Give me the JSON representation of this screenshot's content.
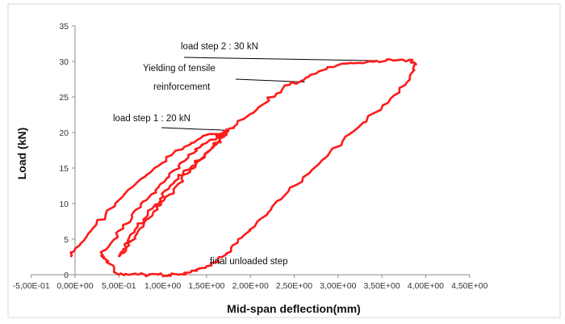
{
  "chart_data": {
    "type": "line",
    "title": "",
    "xlabel": "Mid-span deflection(mm)",
    "ylabel": "Load  (kN)",
    "xlim": [
      -0.5,
      4.5
    ],
    "ylim": [
      0,
      35
    ],
    "x_ticks": [
      -0.5,
      0,
      0.5,
      1,
      1.5,
      2,
      2.5,
      3,
      3.5,
      4,
      4.5
    ],
    "x_tick_labels": [
      "-5,00E-01",
      "0,00E+00",
      "5,00E-01",
      "1,00E+00",
      "1,50E+00",
      "2,00E+00",
      "2,50E+00",
      "3,00E+00",
      "3,50E+00",
      "4,00E+00",
      "4,50E+00"
    ],
    "y_ticks": [
      0,
      5,
      10,
      15,
      20,
      25,
      30,
      35
    ],
    "y_tick_labels": [
      "0",
      "5",
      "10",
      "15",
      "20",
      "25",
      "30",
      "35"
    ],
    "grid": false,
    "legend": "none",
    "series_color": "#ff1a1a",
    "series": [
      {
        "x": [
          -0.05,
          0.0,
          0.1,
          0.2,
          0.35,
          0.5,
          0.65,
          0.8,
          0.95,
          1.1,
          1.25,
          1.4,
          1.55,
          1.7,
          1.75,
          1.85,
          2.0,
          2.15,
          2.3,
          2.45,
          2.6,
          2.75,
          2.95,
          3.15,
          3.35,
          3.55,
          3.7,
          3.85,
          3.87,
          3.82,
          3.74,
          3.6,
          3.42,
          3.23,
          3.05,
          2.88,
          2.7,
          2.52,
          2.35,
          2.2,
          2.05,
          1.9,
          1.78,
          1.68,
          1.62,
          1.5,
          1.38,
          1.3,
          1.18,
          1.07,
          0.95,
          0.85,
          0.72,
          0.6,
          0.5,
          0.4,
          0.33,
          0.3,
          0.35,
          0.45,
          0.55,
          0.65,
          0.75,
          0.85,
          0.95,
          1.05,
          1.15,
          1.25,
          1.35,
          1.45,
          1.55,
          1.65,
          1.75,
          1.7,
          1.62,
          1.52,
          1.42,
          1.3,
          1.18,
          1.07,
          0.97,
          0.88,
          0.78,
          0.68,
          0.6,
          0.55,
          0.5,
          0.58,
          0.68,
          0.78,
          0.88,
          0.98,
          1.08,
          1.18,
          1.28,
          1.38,
          1.48,
          1.58,
          1.68,
          1.75
        ],
        "y": [
          2.5,
          3.5,
          4.8,
          6.5,
          8.5,
          10.5,
          12.3,
          13.8,
          15.3,
          16.8,
          18.0,
          19.0,
          19.8,
          20.2,
          20.3,
          21.2,
          22.6,
          24.0,
          25.5,
          26.7,
          27.3,
          28.3,
          29.2,
          29.8,
          30.0,
          30.1,
          30.2,
          30.2,
          29.5,
          28.0,
          26.5,
          24.8,
          22.8,
          20.7,
          18.7,
          16.7,
          14.7,
          12.6,
          10.6,
          8.7,
          6.8,
          5.2,
          3.8,
          2.5,
          1.8,
          1.2,
          0.7,
          0.3,
          0.0,
          0.0,
          0.0,
          0.0,
          0.0,
          0.0,
          0.0,
          1.5,
          2.3,
          2.7,
          3.5,
          5.0,
          6.5,
          8.0,
          9.5,
          11.0,
          12.3,
          13.6,
          14.8,
          16.0,
          17.1,
          18.2,
          19.0,
          19.6,
          20.2,
          19.4,
          18.4,
          17.3,
          16.1,
          14.8,
          13.5,
          12.1,
          10.7,
          9.3,
          7.8,
          6.3,
          4.8,
          3.6,
          2.6,
          3.8,
          5.3,
          6.8,
          8.3,
          9.8,
          11.3,
          12.8,
          14.2,
          15.6,
          17.0,
          18.3,
          19.4,
          20.2
        ]
      }
    ],
    "annotations": [
      {
        "text": "load step 2 : 30 kN",
        "point": [
          3.45,
          30.1
        ]
      },
      {
        "text": "Yielding of tensile",
        "point": [
          2.62,
          27.1
        ]
      },
      {
        "text": "reinforcement",
        "point": null
      },
      {
        "text": "load step 1 : 20 kN",
        "point": [
          1.75,
          20.3
        ]
      },
      {
        "text": "final unloaded step",
        "point": null
      }
    ]
  }
}
